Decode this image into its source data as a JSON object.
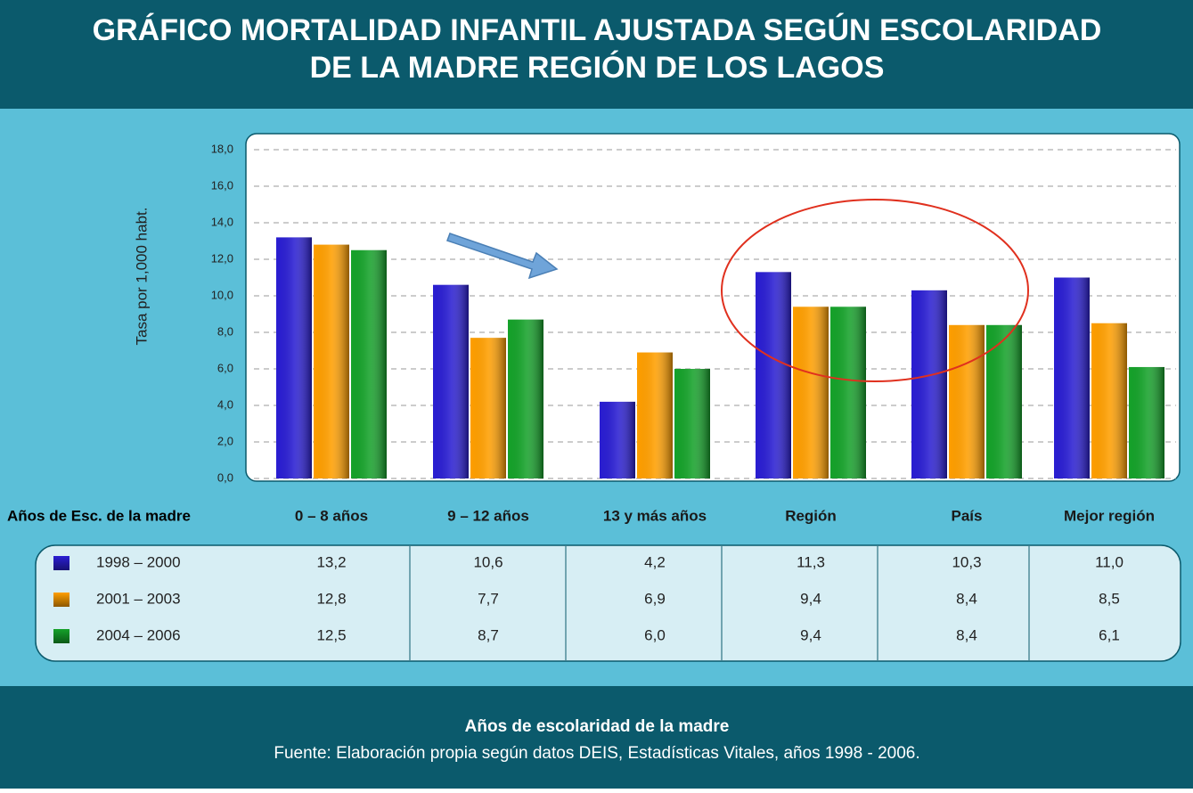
{
  "chart_data": {
    "type": "bar",
    "title": "GRÁFICO MORTALIDAD INFANTIL AJUSTADA SEGÚN ESCOLARIDAD",
    "subtitle": "DE LA MADRE REGIÓN DE LOS LAGOS",
    "y_label": "Tasa por 1,000 habt.",
    "table_header": "Años de Esc. de la madre",
    "x_label": "Años de escolaridad de la madre",
    "source": "Fuente: Elaboración propia según datos DEIS, Estadísticas Vitales, años 1998 - 2006.",
    "categories": [
      "0 – 8 años",
      "9 – 12 años",
      "13 y más años",
      "Región",
      "País",
      "Mejor región"
    ],
    "series": [
      {
        "name": "1998 – 2000",
        "color": "#2a1ed2",
        "values": [
          13.2,
          10.6,
          4.2,
          11.3,
          10.3,
          11.0
        ],
        "value_labels": [
          "13,2",
          "10,6",
          "4,2",
          "11,3",
          "10,3",
          "11,0"
        ]
      },
      {
        "name": "2001 – 2003",
        "color": "#ff9f00",
        "values": [
          12.8,
          7.7,
          6.9,
          9.4,
          8.4,
          8.5
        ],
        "value_labels": [
          "12,8",
          "7,7",
          "6,9",
          "9,4",
          "8,4",
          "8,5"
        ]
      },
      {
        "name": "2004 – 2006",
        "color": "#15a22a",
        "values": [
          12.5,
          8.7,
          6.0,
          9.4,
          8.4,
          6.1
        ],
        "value_labels": [
          "12,5",
          "8,7",
          "6,0",
          "9,4",
          "8,4",
          "6,1"
        ]
      }
    ],
    "ylim": [
      0,
      18
    ],
    "yticks": [
      {
        "value": 0,
        "label": "0,0"
      },
      {
        "value": 2,
        "label": "2,0"
      },
      {
        "value": 4,
        "label": "4,0"
      },
      {
        "value": 6,
        "label": "6,0"
      },
      {
        "value": 8,
        "label": "8,0"
      },
      {
        "value": 10,
        "label": "10,0"
      },
      {
        "value": 12,
        "label": "12,0"
      },
      {
        "value": 14,
        "label": "14,0"
      },
      {
        "value": 16,
        "label": "16,0"
      },
      {
        "value": 18,
        "label": "18,0"
      }
    ],
    "grid": true
  }
}
